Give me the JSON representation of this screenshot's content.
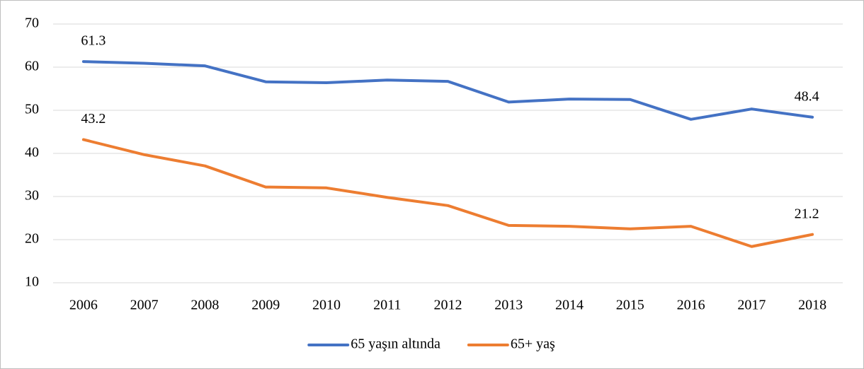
{
  "chart_data": {
    "type": "line",
    "categories": [
      "2006",
      "2007",
      "2008",
      "2009",
      "2010",
      "2011",
      "2012",
      "2013",
      "2014",
      "2015",
      "2016",
      "2017",
      "2018"
    ],
    "series": [
      {
        "name": "65 yaşın altında",
        "color": "#4472c4",
        "values": [
          61.3,
          60.9,
          60.3,
          56.6,
          56.4,
          57.0,
          56.7,
          51.9,
          52.6,
          52.5,
          47.9,
          50.3,
          48.4
        ],
        "value_labels": [
          "61.3",
          null,
          null,
          null,
          null,
          null,
          null,
          null,
          null,
          null,
          null,
          null,
          "48.4"
        ]
      },
      {
        "name": "65+ yaş",
        "color": "#ed7d31",
        "values": [
          43.2,
          39.7,
          37.1,
          32.2,
          32.0,
          29.8,
          27.9,
          23.3,
          23.1,
          22.5,
          23.1,
          18.4,
          21.2
        ],
        "value_labels": [
          "43.2",
          null,
          null,
          null,
          null,
          null,
          null,
          null,
          null,
          null,
          null,
          null,
          "21.2"
        ]
      }
    ],
    "ylim": [
      10,
      70
    ],
    "yticks": [
      10,
      20,
      30,
      40,
      50,
      60,
      70
    ],
    "grid": true,
    "legend": "bottom"
  }
}
